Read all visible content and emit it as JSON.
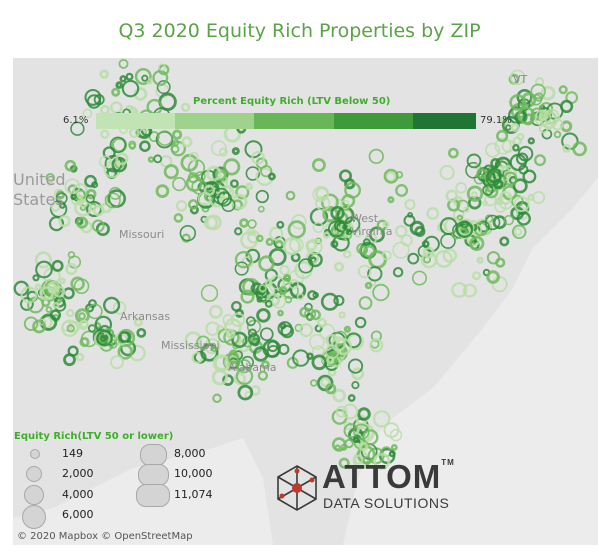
{
  "title": "Q3 2020 Equity Rich Properties by ZIP",
  "color_legend": {
    "title": "Percent Equity Rich (LTV Below 50)",
    "min_label": "6.1%",
    "max_label": "79.1%",
    "colors": [
      "#c2e3b3",
      "#9fd28c",
      "#69b658",
      "#3f9b3a",
      "#207534"
    ]
  },
  "size_legend": {
    "title": "Equity Rich(LTV 50 or lower)",
    "items": [
      "149",
      "2,000",
      "4,000",
      "6,000",
      "8,000",
      "10,000",
      "11,074"
    ]
  },
  "map_labels": {
    "state1": "United",
    "state2": "States",
    "missouri": "Missouri",
    "west_virginia_1": "West",
    "west_virginia_2": "Virginia",
    "arkansas": "Arkansas",
    "mississippi": "Mississippi",
    "alabama": "Alabama",
    "vt": "VT"
  },
  "logo": {
    "name": "ATTOM",
    "tm": "TM",
    "sub": "DATA SOLUTIONS"
  },
  "attribution": "© 2020 Mapbox © OpenStreetMap",
  "colors": {
    "marker_light": "#b9dea8",
    "marker_mid": "#6fba5d",
    "marker_dark": "#2e8b3a"
  }
}
